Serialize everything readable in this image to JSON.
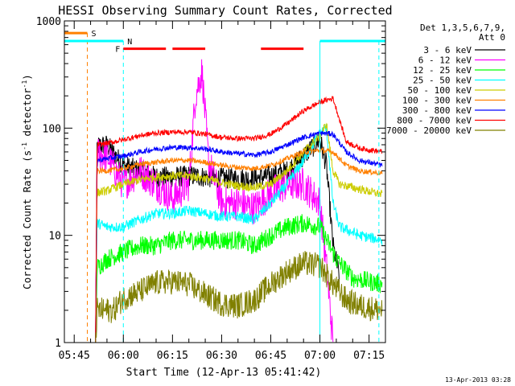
{
  "chart_data": {
    "type": "line",
    "title": "HESSI Observing Summary Count Rates, Corrected",
    "xlabel": "Start Time (12-Apr-13 05:41:42)",
    "ylabel_main": "Corrected Count Rate (s",
    "ylabel_sup1": "-1",
    "ylabel_mid": " detector",
    "ylabel_sup2": "-1",
    "ylabel_end": ")",
    "yscale": "log",
    "ylim": [
      1,
      1000
    ],
    "y_ticks": [
      {
        "value": 1,
        "label": "1"
      },
      {
        "value": 10,
        "label": "10"
      },
      {
        "value": 100,
        "label": "100"
      },
      {
        "value": 1000,
        "label": "1000"
      }
    ],
    "xlim_minutes": [
      -18,
      80
    ],
    "x_ticks": [
      {
        "t": -15,
        "label": "05:45"
      },
      {
        "t": 0,
        "label": "06:00"
      },
      {
        "t": 15,
        "label": "06:15"
      },
      {
        "t": 30,
        "label": "06:30"
      },
      {
        "t": 45,
        "label": "06:45"
      },
      {
        "t": 60,
        "label": "07:00"
      },
      {
        "t": 75,
        "label": "07:15"
      }
    ],
    "legend": {
      "header": [
        "Det 1,3,5,6,7,9,",
        "Att 0"
      ],
      "position": "right"
    },
    "series": [
      {
        "name": "3 - 6 keV",
        "color": "#000000",
        "points": [
          [
            -8.5,
            1
          ],
          [
            -8,
            68
          ],
          [
            -5,
            70
          ],
          [
            0,
            45
          ],
          [
            5,
            40
          ],
          [
            10,
            35
          ],
          [
            15,
            35
          ],
          [
            20,
            36
          ],
          [
            25,
            35
          ],
          [
            30,
            34
          ],
          [
            35,
            34
          ],
          [
            40,
            34
          ],
          [
            45,
            36
          ],
          [
            50,
            40
          ],
          [
            55,
            55
          ],
          [
            60,
            78
          ],
          [
            62,
            45
          ],
          [
            64,
            8
          ],
          [
            66,
            4
          ]
        ]
      },
      {
        "name": "6 - 12 keV",
        "color": "#ff00ff",
        "points": [
          [
            -8.5,
            1
          ],
          [
            -8,
            58
          ],
          [
            -5,
            55
          ],
          [
            0,
            30
          ],
          [
            5,
            40
          ],
          [
            10,
            30
          ],
          [
            15,
            22
          ],
          [
            20,
            30
          ],
          [
            22,
            200
          ],
          [
            24,
            340
          ],
          [
            26,
            50
          ],
          [
            30,
            20
          ],
          [
            35,
            20
          ],
          [
            40,
            18
          ],
          [
            45,
            25
          ],
          [
            50,
            30
          ],
          [
            55,
            30
          ],
          [
            60,
            20
          ],
          [
            62,
            5
          ],
          [
            64,
            1
          ]
        ]
      },
      {
        "name": "12 - 25 keV",
        "color": "#00ff00",
        "points": [
          [
            -8.5,
            1
          ],
          [
            -8,
            5
          ],
          [
            -5,
            6
          ],
          [
            0,
            7
          ],
          [
            5,
            8
          ],
          [
            10,
            8
          ],
          [
            15,
            9
          ],
          [
            20,
            9
          ],
          [
            25,
            9
          ],
          [
            30,
            9
          ],
          [
            35,
            9
          ],
          [
            40,
            8
          ],
          [
            45,
            10
          ],
          [
            50,
            12
          ],
          [
            55,
            13
          ],
          [
            60,
            12
          ],
          [
            65,
            6
          ],
          [
            70,
            4
          ],
          [
            79,
            3.5
          ]
        ]
      },
      {
        "name": "25 - 50 keV",
        "color": "#00ffff",
        "points": [
          [
            -8.5,
            1
          ],
          [
            -8,
            13
          ],
          [
            -5,
            12
          ],
          [
            0,
            12
          ],
          [
            5,
            14
          ],
          [
            10,
            16
          ],
          [
            15,
            16
          ],
          [
            20,
            17
          ],
          [
            25,
            16
          ],
          [
            30,
            15
          ],
          [
            35,
            15
          ],
          [
            40,
            14
          ],
          [
            45,
            20
          ],
          [
            50,
            30
          ],
          [
            55,
            50
          ],
          [
            60,
            90
          ],
          [
            62,
            100
          ],
          [
            64,
            20
          ],
          [
            66,
            12
          ],
          [
            72,
            10
          ],
          [
            79,
            9
          ]
        ]
      },
      {
        "name": "50 - 100 keV",
        "color": "#cccc00",
        "points": [
          [
            -8.5,
            1
          ],
          [
            -8,
            25
          ],
          [
            -5,
            26
          ],
          [
            0,
            30
          ],
          [
            5,
            33
          ],
          [
            10,
            35
          ],
          [
            15,
            36
          ],
          [
            20,
            36
          ],
          [
            25,
            34
          ],
          [
            30,
            31
          ],
          [
            35,
            29
          ],
          [
            40,
            28
          ],
          [
            45,
            30
          ],
          [
            50,
            40
          ],
          [
            55,
            60
          ],
          [
            60,
            85
          ],
          [
            62,
            110
          ],
          [
            64,
            40
          ],
          [
            66,
            30
          ],
          [
            72,
            27
          ],
          [
            79,
            24
          ]
        ]
      },
      {
        "name": "100 - 300 keV",
        "color": "#ff8000",
        "points": [
          [
            -8.5,
            1
          ],
          [
            -8,
            40
          ],
          [
            -5,
            40
          ],
          [
            0,
            42
          ],
          [
            5,
            46
          ],
          [
            10,
            48
          ],
          [
            15,
            50
          ],
          [
            20,
            50
          ],
          [
            25,
            48
          ],
          [
            30,
            45
          ],
          [
            35,
            43
          ],
          [
            40,
            42
          ],
          [
            45,
            45
          ],
          [
            50,
            52
          ],
          [
            55,
            60
          ],
          [
            60,
            62
          ],
          [
            64,
            60
          ],
          [
            68,
            45
          ],
          [
            72,
            40
          ],
          [
            79,
            38
          ]
        ]
      },
      {
        "name": "300 - 800 keV",
        "color": "#0000ff",
        "points": [
          [
            -8.5,
            1
          ],
          [
            -8,
            50
          ],
          [
            -5,
            52
          ],
          [
            0,
            55
          ],
          [
            5,
            60
          ],
          [
            10,
            64
          ],
          [
            15,
            66
          ],
          [
            20,
            66
          ],
          [
            25,
            64
          ],
          [
            30,
            60
          ],
          [
            35,
            58
          ],
          [
            40,
            56
          ],
          [
            45,
            60
          ],
          [
            50,
            70
          ],
          [
            55,
            82
          ],
          [
            60,
            90
          ],
          [
            64,
            88
          ],
          [
            68,
            60
          ],
          [
            72,
            50
          ],
          [
            79,
            45
          ]
        ]
      },
      {
        "name": "800 - 7000 keV",
        "color": "#ff0000",
        "points": [
          [
            -8.5,
            1
          ],
          [
            -8,
            70
          ],
          [
            -5,
            72
          ],
          [
            0,
            78
          ],
          [
            5,
            85
          ],
          [
            10,
            90
          ],
          [
            15,
            92
          ],
          [
            20,
            92
          ],
          [
            25,
            88
          ],
          [
            30,
            82
          ],
          [
            35,
            80
          ],
          [
            40,
            80
          ],
          [
            45,
            88
          ],
          [
            50,
            110
          ],
          [
            55,
            145
          ],
          [
            60,
            175
          ],
          [
            64,
            190
          ],
          [
            68,
            75
          ],
          [
            72,
            65
          ],
          [
            79,
            60
          ]
        ]
      },
      {
        "name": "7000 - 20000 keV",
        "color": "#808000",
        "points": [
          [
            -8.5,
            1
          ],
          [
            -8,
            2
          ],
          [
            -3,
            2
          ],
          [
            0,
            2.6
          ],
          [
            5,
            3
          ],
          [
            10,
            3.6
          ],
          [
            15,
            3.7
          ],
          [
            20,
            3.5
          ],
          [
            25,
            2.8
          ],
          [
            30,
            2.3
          ],
          [
            35,
            2.2
          ],
          [
            40,
            2.5
          ],
          [
            45,
            3.5
          ],
          [
            50,
            4.6
          ],
          [
            55,
            5.5
          ],
          [
            60,
            5.2
          ],
          [
            64,
            3.5
          ],
          [
            68,
            2.5
          ],
          [
            72,
            2.2
          ],
          [
            79,
            2.0
          ]
        ]
      }
    ],
    "annotations": {
      "S": {
        "label": "S",
        "color": "#ff8000",
        "segments": [
          [
            -18,
            -11
          ]
        ],
        "y_value": 770,
        "line_t": -11
      },
      "N": {
        "label": "N",
        "color": "#00ffff",
        "segments": [
          [
            -18,
            0
          ],
          [
            60,
            80
          ]
        ],
        "y_value": 650,
        "lines_t": [
          -18,
          0,
          60,
          78
        ]
      },
      "F": {
        "label": "F",
        "color": "#ff0000",
        "segments": [
          [
            0,
            13
          ],
          [
            15,
            25
          ],
          [
            42,
            55
          ]
        ],
        "y_value": 550
      }
    },
    "grid": false
  },
  "footer": {
    "timestamp": "13-Apr-2013 03:28"
  }
}
